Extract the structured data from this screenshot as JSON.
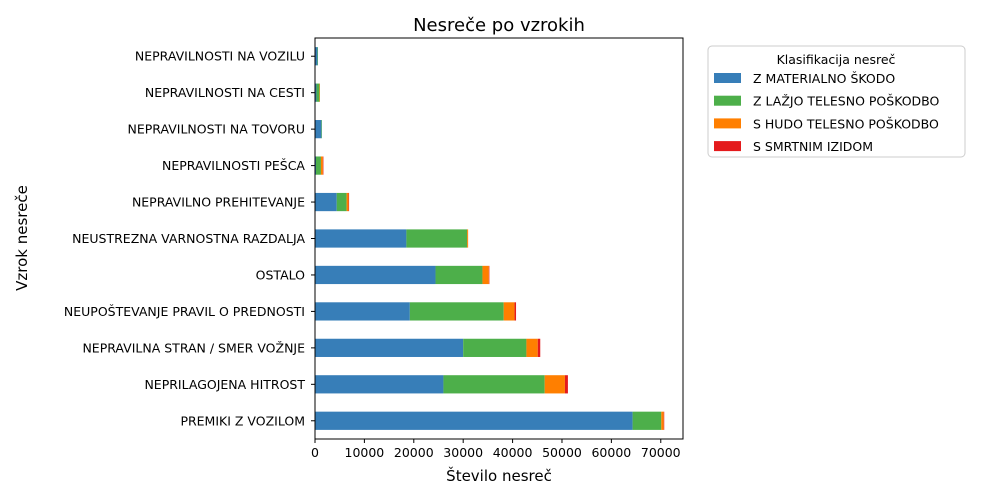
{
  "chart_data": {
    "type": "bar",
    "orientation": "horizontal",
    "stacked": true,
    "title": "Nesreče po vzrokih",
    "xlabel": "Število nesreč",
    "ylabel": "Vzrok nesreče",
    "xlim": [
      0,
      74500
    ],
    "xticks": [
      "0",
      "10000",
      "20000",
      "30000",
      "40000",
      "50000",
      "60000",
      "70000"
    ],
    "xtick_values": [
      0,
      10000,
      20000,
      30000,
      40000,
      50000,
      60000,
      70000
    ],
    "grid": false,
    "legend": {
      "title": "Klasifikacija nesreč",
      "placement": "outside-top-right"
    },
    "categories": [
      "PREMIKI Z VOZILOM",
      "NEPRILAGOJENA HITROST",
      "NEPRAVILNA STRAN / SMER VOŽNJE",
      "NEUPOŠTEVANJE PRAVIL O PREDNOSTI",
      "OSTALO",
      "NEUSTREZNA VARNOSTNA RAZDALJA",
      "NEPRAVILNO PREHITEVANJE",
      "NEPRAVILNOSTI PEŠCA",
      "NEPRAVILNOSTI NA TOVORU",
      "NEPRAVILNOSTI NA CESTI",
      "NEPRAVILNOSTI NA VOZILU"
    ],
    "series": [
      {
        "name": "Z MATERIALNO ŠKODO",
        "color": "#377eb8",
        "values": [
          64300,
          26000,
          30000,
          19200,
          24400,
          18500,
          4400,
          200,
          1300,
          300,
          500
        ]
      },
      {
        "name": "Z LAŽJO TELESNO POŠKODBO",
        "color": "#4daf4a",
        "values": [
          5800,
          20500,
          12800,
          19000,
          9500,
          12300,
          2000,
          1000,
          100,
          600,
          100
        ]
      },
      {
        "name": "S HUDO TELESNO POŠKODBO",
        "color": "#ff7f00",
        "values": [
          500,
          4100,
          2300,
          2200,
          1300,
          200,
          400,
          400,
          0,
          100,
          0
        ]
      },
      {
        "name": "S SMRTNIM IZIDOM",
        "color": "#e41a1c",
        "values": [
          100,
          600,
          500,
          300,
          100,
          0,
          100,
          100,
          0,
          0,
          0
        ]
      }
    ]
  }
}
